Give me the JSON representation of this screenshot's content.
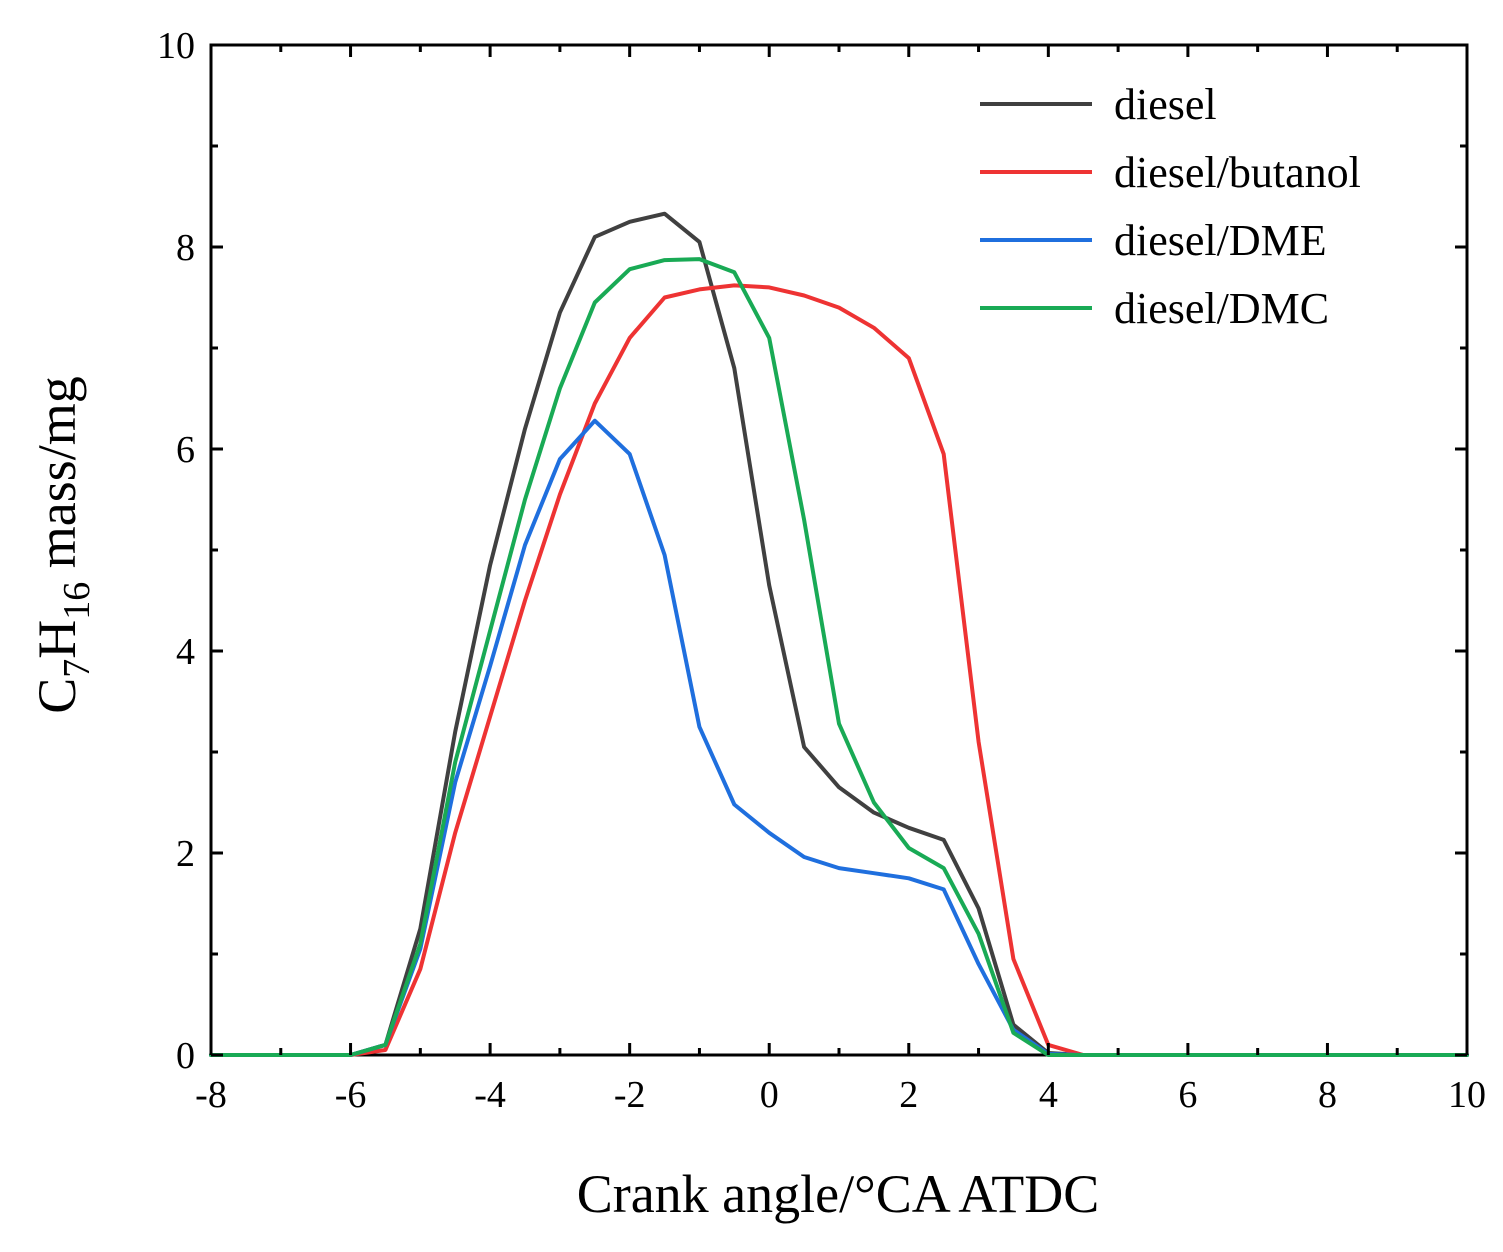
{
  "chart_data": {
    "type": "line",
    "title": "",
    "xlabel": "Crank angle/°CA ATDC",
    "ylabel": {
      "base": "C",
      "sub1": "7",
      "mid": "H",
      "sub2": "16",
      "rest": " mass/mg"
    },
    "xlim": [
      -8,
      10
    ],
    "ylim": [
      0,
      10
    ],
    "xticks": [
      -8,
      -6,
      -4,
      -2,
      0,
      2,
      4,
      6,
      8,
      10
    ],
    "yticks": [
      0,
      2,
      4,
      6,
      8,
      10
    ],
    "grid": false,
    "legend_position": "top-right",
    "series": [
      {
        "name": "diesel",
        "color": "#404040",
        "x": [
          -8,
          -6,
          -5.5,
          -5,
          -4.5,
          -4,
          -3.5,
          -3,
          -2.5,
          -2,
          -1.5,
          -1,
          -0.5,
          0,
          0.5,
          1,
          1.5,
          2,
          2.5,
          3,
          3.5,
          4,
          4.5,
          10
        ],
        "y": [
          0,
          0,
          0.1,
          1.25,
          3.2,
          4.85,
          6.2,
          7.35,
          8.1,
          8.25,
          8.33,
          8.05,
          6.8,
          4.65,
          3.05,
          2.65,
          2.4,
          2.25,
          2.13,
          1.45,
          0.3,
          0.02,
          0,
          0
        ]
      },
      {
        "name": "diesel/butanol",
        "color": "#ee3333",
        "x": [
          -8,
          -6,
          -5.5,
          -5,
          -4.5,
          -4,
          -3.5,
          -3,
          -2.5,
          -2,
          -1.5,
          -1,
          -0.5,
          0,
          0.5,
          1,
          1.5,
          2,
          2.5,
          3,
          3.5,
          4,
          4.5,
          10
        ],
        "y": [
          0,
          0,
          0.05,
          0.85,
          2.2,
          3.35,
          4.5,
          5.55,
          6.45,
          7.1,
          7.5,
          7.58,
          7.62,
          7.6,
          7.52,
          7.4,
          7.2,
          6.9,
          5.95,
          3.1,
          0.95,
          0.1,
          0,
          0
        ]
      },
      {
        "name": "diesel/DME",
        "color": "#1f6fde",
        "x": [
          -8,
          -6,
          -5.5,
          -5,
          -4.5,
          -4,
          -3.5,
          -3,
          -2.5,
          -2,
          -1.5,
          -1,
          -0.5,
          0,
          0.5,
          1,
          1.5,
          2,
          2.5,
          3,
          3.5,
          4,
          4.5,
          10
        ],
        "y": [
          0,
          0,
          0.1,
          1.05,
          2.7,
          3.85,
          5.05,
          5.9,
          6.28,
          5.95,
          4.95,
          3.25,
          2.48,
          2.2,
          1.96,
          1.85,
          1.8,
          1.75,
          1.64,
          0.9,
          0.25,
          0.01,
          0,
          0
        ]
      },
      {
        "name": "diesel/DMC",
        "color": "#19aa55",
        "x": [
          -8,
          -6,
          -5.5,
          -5,
          -4.5,
          -4,
          -3.5,
          -3,
          -2.5,
          -2,
          -1.5,
          -1,
          -0.5,
          0,
          0.5,
          1,
          1.5,
          2,
          2.5,
          3,
          3.5,
          4,
          4.5,
          10
        ],
        "y": [
          0,
          0,
          0.1,
          1.1,
          2.9,
          4.2,
          5.5,
          6.6,
          7.45,
          7.78,
          7.87,
          7.88,
          7.75,
          7.1,
          5.3,
          3.28,
          2.5,
          2.05,
          1.85,
          1.2,
          0.22,
          0,
          0,
          0
        ]
      }
    ]
  }
}
